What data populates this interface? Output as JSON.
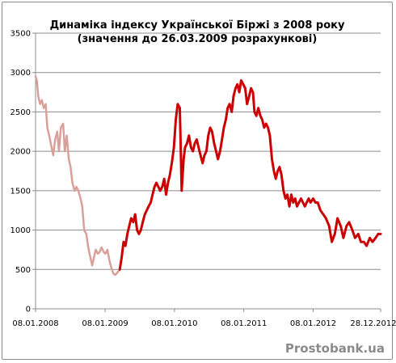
{
  "chart_data": {
    "type": "line",
    "title": "Динаміка індексу Української Біржі з 2008  року",
    "subtitle": "(значення до 26.03.2009  розрахункові)",
    "xlabel": "",
    "ylabel": "",
    "ylim": [
      0,
      3500
    ],
    "yticks": [
      0,
      500,
      1000,
      1500,
      2000,
      2500,
      3000,
      3500
    ],
    "xticks": [
      "08.01.2008",
      "08.01.2009",
      "08.01.2010",
      "08.01.2011",
      "08.01.2012",
      "28.12.2012"
    ],
    "grid": true,
    "legend": "none",
    "series": [
      {
        "color": "#d9a09a",
        "style": "calculated",
        "x": [
          "2008-01-08",
          "2008-01-15",
          "2008-01-22",
          "2008-02-01",
          "2008-02-10",
          "2008-02-20",
          "2008-03-01",
          "2008-03-10",
          "2008-03-20",
          "2008-04-01",
          "2008-04-10",
          "2008-04-20",
          "2008-05-01",
          "2008-05-10",
          "2008-05-20",
          "2008-06-01",
          "2008-06-10",
          "2008-06-20",
          "2008-07-01",
          "2008-07-10",
          "2008-07-20",
          "2008-08-01",
          "2008-08-10",
          "2008-08-20",
          "2008-09-01",
          "2008-09-10",
          "2008-09-20",
          "2008-10-01",
          "2008-10-10",
          "2008-10-20",
          "2008-11-01",
          "2008-11-10",
          "2008-11-20",
          "2008-12-01",
          "2008-12-10",
          "2008-12-20",
          "2009-01-01",
          "2009-01-10",
          "2009-01-20",
          "2009-02-01",
          "2009-02-10",
          "2009-02-20",
          "2009-03-01",
          "2009-03-10",
          "2009-03-20",
          "2009-03-26"
        ],
        "y": [
          2950,
          2900,
          2700,
          2600,
          2650,
          2550,
          2600,
          2300,
          2200,
          2050,
          1950,
          2150,
          2250,
          2000,
          2300,
          2350,
          2000,
          2200,
          1900,
          1800,
          1600,
          1500,
          1550,
          1500,
          1400,
          1300,
          1000,
          950,
          800,
          680,
          550,
          650,
          750,
          700,
          720,
          780,
          720,
          700,
          750,
          600,
          520,
          450,
          430,
          450,
          480,
          500
        ]
      },
      {
        "color": "#cc0000",
        "style": "actual",
        "x": [
          "2009-03-26",
          "2009-04-05",
          "2009-04-15",
          "2009-04-25",
          "2009-05-05",
          "2009-05-15",
          "2009-05-25",
          "2009-06-05",
          "2009-06-15",
          "2009-06-25",
          "2009-07-05",
          "2009-07-15",
          "2009-07-25",
          "2009-08-05",
          "2009-08-15",
          "2009-08-25",
          "2009-09-05",
          "2009-09-15",
          "2009-09-25",
          "2009-10-05",
          "2009-10-15",
          "2009-10-25",
          "2009-11-05",
          "2009-11-15",
          "2009-11-25",
          "2009-12-05",
          "2009-12-15",
          "2009-12-25",
          "2010-01-05",
          "2010-01-15",
          "2010-01-25",
          "2010-02-05",
          "2010-02-15",
          "2010-02-25",
          "2010-03-05",
          "2010-03-15",
          "2010-03-25",
          "2010-04-05",
          "2010-04-15",
          "2010-04-25",
          "2010-05-05",
          "2010-05-15",
          "2010-05-25",
          "2010-06-05",
          "2010-06-15",
          "2010-06-25",
          "2010-07-05",
          "2010-07-15",
          "2010-07-25",
          "2010-08-05",
          "2010-08-15",
          "2010-08-25",
          "2010-09-05",
          "2010-09-15",
          "2010-09-25",
          "2010-10-05",
          "2010-10-15",
          "2010-10-25",
          "2010-11-05",
          "2010-11-15",
          "2010-11-25",
          "2010-12-05",
          "2010-12-15",
          "2010-12-25",
          "2011-01-05",
          "2011-01-15",
          "2011-01-25",
          "2011-02-05",
          "2011-02-15",
          "2011-02-25",
          "2011-03-05",
          "2011-03-15",
          "2011-03-25",
          "2011-04-05",
          "2011-04-15",
          "2011-04-25",
          "2011-05-05",
          "2011-05-15",
          "2011-05-25",
          "2011-06-05",
          "2011-06-15",
          "2011-06-25",
          "2011-07-05",
          "2011-07-15",
          "2011-07-25",
          "2011-08-05",
          "2011-08-15",
          "2011-08-25",
          "2011-09-05",
          "2011-09-15",
          "2011-09-25",
          "2011-10-05",
          "2011-10-15",
          "2011-10-25",
          "2011-11-05",
          "2011-11-15",
          "2011-11-25",
          "2011-12-05",
          "2011-12-15",
          "2011-12-25",
          "2012-01-08",
          "2012-01-20",
          "2012-02-01",
          "2012-02-15",
          "2012-03-01",
          "2012-03-15",
          "2012-04-01",
          "2012-04-15",
          "2012-05-01",
          "2012-05-15",
          "2012-06-01",
          "2012-06-15",
          "2012-07-01",
          "2012-07-15",
          "2012-08-01",
          "2012-08-15",
          "2012-09-01",
          "2012-09-15",
          "2012-10-01",
          "2012-10-15",
          "2012-11-01",
          "2012-11-15",
          "2012-12-01",
          "2012-12-15",
          "2012-12-28"
        ],
        "y": [
          500,
          650,
          850,
          800,
          950,
          1050,
          1150,
          1100,
          1200,
          1000,
          950,
          1000,
          1100,
          1200,
          1250,
          1300,
          1350,
          1450,
          1550,
          1600,
          1550,
          1500,
          1550,
          1650,
          1450,
          1600,
          1700,
          1850,
          2050,
          2400,
          2600,
          2550,
          1500,
          1900,
          2050,
          2100,
          2200,
          2050,
          2000,
          2100,
          2150,
          2050,
          1950,
          1850,
          1950,
          2000,
          2200,
          2300,
          2250,
          2100,
          2000,
          1900,
          2000,
          2150,
          2300,
          2400,
          2550,
          2600,
          2500,
          2700,
          2800,
          2850,
          2750,
          2900,
          2850,
          2800,
          2600,
          2700,
          2800,
          2750,
          2500,
          2450,
          2550,
          2450,
          2400,
          2300,
          2350,
          2300,
          2200,
          1900,
          1750,
          1650,
          1750,
          1800,
          1700,
          1500,
          1400,
          1450,
          1300,
          1450,
          1350,
          1400,
          1300,
          1350,
          1400,
          1350,
          1300,
          1350,
          1400,
          1350,
          1400,
          1350,
          1350,
          1250,
          1200,
          1150,
          1050,
          850,
          950,
          1150,
          1050,
          900,
          1050,
          1100,
          1000,
          900,
          950,
          850,
          850,
          800,
          900,
          850,
          900,
          950,
          950
        ]
      }
    ]
  },
  "watermark": "Prostobank.ua"
}
